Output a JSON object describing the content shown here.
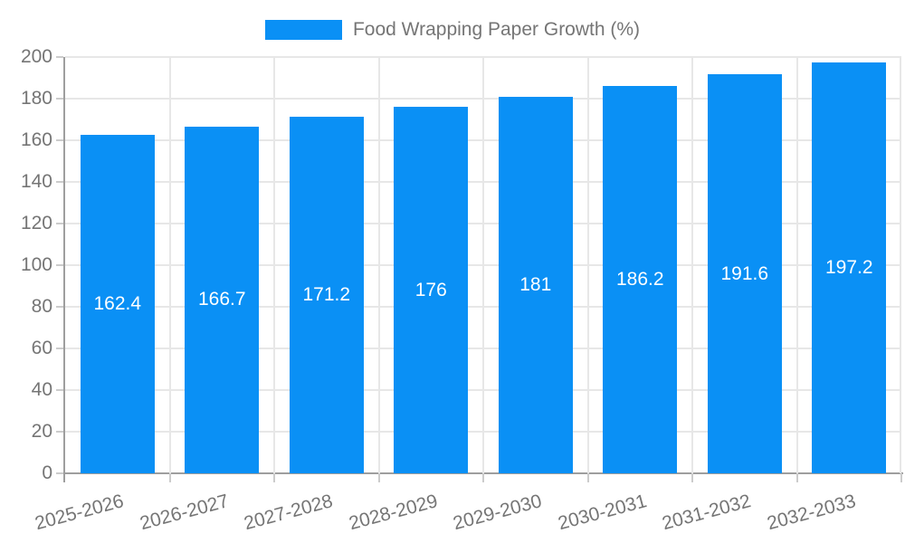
{
  "chart_data": {
    "type": "bar",
    "title": "Food Wrapping Paper Growth (%)",
    "categories": [
      "2025-2026",
      "2026-2027",
      "2027-2028",
      "2028-2029",
      "2029-2030",
      "2030-2031",
      "2031-2032",
      "2032-2033"
    ],
    "values": [
      162.4,
      166.7,
      171.2,
      176,
      181,
      186.2,
      191.6,
      197.2
    ],
    "value_labels": [
      "162.4",
      "166.7",
      "171.2",
      "176",
      "181",
      "186.2",
      "191.6",
      "197.2"
    ],
    "xlabel": "",
    "ylabel": "",
    "ylim": [
      0,
      200
    ],
    "yticks": [
      0,
      20,
      40,
      60,
      80,
      100,
      120,
      140,
      160,
      180,
      200
    ],
    "grid": true,
    "legend_position": "top",
    "colors": {
      "bar": "#0a90f5",
      "bar_label": "#ffffff",
      "axis_text": "#757575",
      "grid": "#e7e7e7",
      "axis_line": "#9e9e9e",
      "tick": "#cccccc",
      "background": "#ffffff"
    }
  }
}
